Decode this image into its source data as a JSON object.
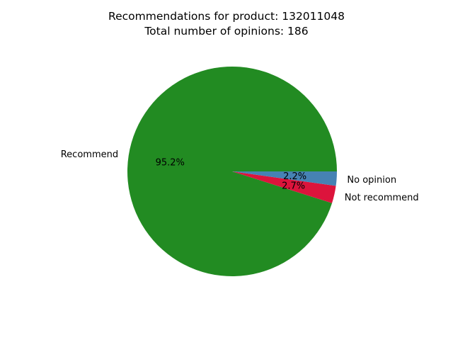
{
  "chart_data": {
    "type": "pie",
    "title_line1": "Recommendations for product: 132011048",
    "title_line2": "Total number of opinions: 186",
    "slices": [
      {
        "label": "Recommend",
        "percent_label": "95.2%",
        "value": 95.2,
        "color": "#228b22"
      },
      {
        "label": "No opinion",
        "percent_label": "2.2%",
        "value": 2.2,
        "color": "#4682b4"
      },
      {
        "label": "Not recommend",
        "percent_label": "2.7%",
        "value": 2.7,
        "color": "#dc143c"
      }
    ]
  }
}
